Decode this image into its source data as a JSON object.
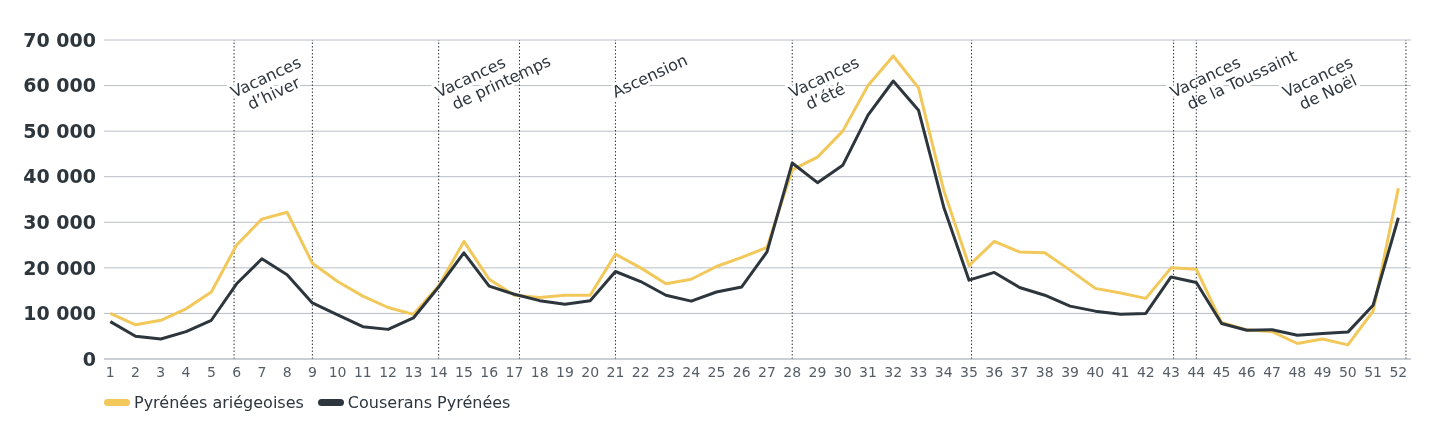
{
  "chart_data": {
    "type": "line",
    "x": [
      1,
      2,
      3,
      4,
      5,
      6,
      7,
      8,
      9,
      10,
      11,
      12,
      13,
      14,
      15,
      16,
      17,
      18,
      19,
      20,
      21,
      22,
      23,
      24,
      25,
      26,
      27,
      28,
      29,
      30,
      31,
      32,
      33,
      34,
      35,
      36,
      37,
      38,
      39,
      40,
      41,
      42,
      43,
      44,
      45,
      46,
      47,
      48,
      49,
      50,
      51,
      52
    ],
    "xlim": [
      0.75,
      52.5
    ],
    "xticks": [
      1,
      2,
      3,
      4,
      5,
      6,
      7,
      8,
      9,
      10,
      11,
      12,
      13,
      14,
      15,
      16,
      17,
      18,
      19,
      20,
      21,
      22,
      23,
      24,
      25,
      26,
      27,
      28,
      29,
      30,
      31,
      32,
      33,
      34,
      35,
      36,
      37,
      38,
      39,
      40,
      41,
      42,
      43,
      44,
      45,
      46,
      47,
      48,
      49,
      50,
      51,
      52
    ],
    "ylim": [
      0,
      70000
    ],
    "yticks": [
      {
        "value": 0,
        "label": "0"
      },
      {
        "value": 10000,
        "label": "10 000"
      },
      {
        "value": 20000,
        "label": "20 000"
      },
      {
        "value": 30000,
        "label": "30 000"
      },
      {
        "value": 40000,
        "label": "40 000"
      },
      {
        "value": 50000,
        "label": "50 000"
      },
      {
        "value": 60000,
        "label": "60 000"
      },
      {
        "value": 70000,
        "label": "70 000"
      }
    ],
    "series": [
      {
        "name": "Pyrénées ariégeoises",
        "color": "#f2c85b",
        "values": [
          10000,
          7500,
          8500,
          11000,
          14700,
          25000,
          30700,
          32200,
          21000,
          17000,
          13800,
          11300,
          9800,
          16000,
          25800,
          17500,
          14000,
          13500,
          14000,
          14000,
          23000,
          20000,
          16500,
          17500,
          20300,
          22300,
          24500,
          41500,
          44300,
          50000,
          60000,
          66500,
          59500,
          37000,
          20500,
          25800,
          23500,
          23300,
          19500,
          15500,
          14500,
          13300,
          20000,
          19700,
          8000,
          6400,
          6000,
          3400,
          4400,
          3100,
          10500,
          37500
        ]
      },
      {
        "name": "Couserans Pyrénées",
        "color": "#2d353d",
        "values": [
          8200,
          5000,
          4400,
          6000,
          8500,
          16500,
          22000,
          18500,
          12300,
          9700,
          7100,
          6500,
          9000,
          15800,
          23300,
          16000,
          14200,
          12800,
          12000,
          12800,
          19200,
          17000,
          14000,
          12700,
          14700,
          15800,
          23500,
          43000,
          38700,
          42500,
          53500,
          61000,
          54600,
          33300,
          17300,
          19000,
          15700,
          14000,
          11600,
          10500,
          9800,
          10000,
          18000,
          16800,
          7800,
          6300,
          6400,
          5200,
          5600,
          5900,
          11800,
          31000
        ]
      }
    ],
    "ref_lines": [
      {
        "axis": "x",
        "value": 5.9,
        "label": "Vacances\nd’hiver",
        "line_style": "dotted",
        "color": "#2d353d"
      },
      {
        "axis": "x",
        "value": 9,
        "label": null,
        "line_style": "dotted",
        "color": "#2d353d"
      },
      {
        "axis": "x",
        "value": 14,
        "label": "Vacances\nde printemps",
        "line_style": "dotted",
        "color": "#2d353d"
      },
      {
        "axis": "x",
        "value": 17.2,
        "label": null,
        "line_style": "dotted",
        "color": "#2d353d"
      },
      {
        "axis": "x",
        "value": 21,
        "label": "Ascension",
        "line_style": "dotted",
        "color": "#2d353d"
      },
      {
        "axis": "x",
        "value": 28,
        "label": "Vacances\nd’été",
        "line_style": "dotted",
        "color": "#2d353d"
      },
      {
        "axis": "x",
        "value": 35.1,
        "label": null,
        "line_style": "dotted",
        "color": "#2d353d"
      },
      {
        "axis": "x",
        "value": 43.1,
        "label": "Vacances\nde la Toussaint",
        "line_style": "dotted",
        "color": "#2d353d"
      },
      {
        "axis": "x",
        "value": 44,
        "label": null,
        "line_style": "dotted",
        "color": "#2d353d"
      },
      {
        "axis": "x",
        "value": 52.3,
        "label": "Vacances\nde Noël",
        "line_style": "dotted",
        "color": "#2d353d"
      }
    ],
    "grid": "y",
    "legend": "bottom left",
    "marker": "none",
    "line_style": "solid"
  }
}
